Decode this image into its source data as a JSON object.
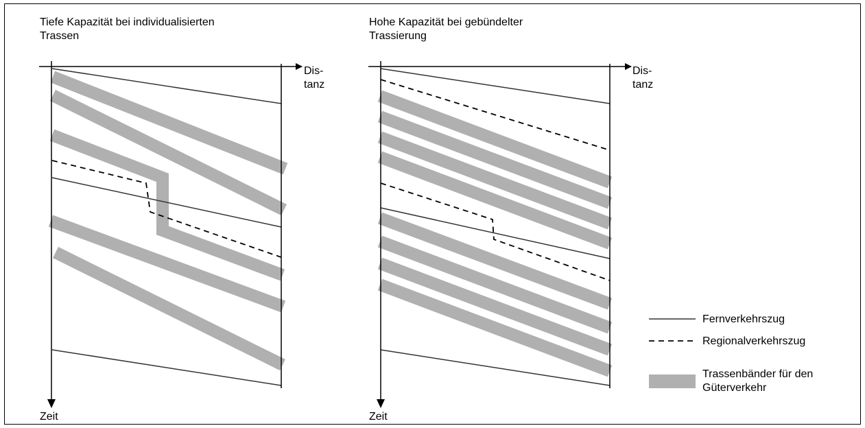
{
  "panels": [
    {
      "title": "Tiefe Kapazität bei individualisierten\nTrassen",
      "x_axis_label": "Dis-\ntanz",
      "y_axis_label": "Zeit"
    },
    {
      "title": "Hohe Kapazität bei gebündelter\nTrassierung",
      "x_axis_label": "Dis-\ntanz",
      "y_axis_label": "Zeit"
    }
  ],
  "legend": {
    "long_distance": "Fernverkehrszug",
    "regional": "Regionalverkehrszug",
    "freight": "Trassenbänder für den\nGüterverkehr"
  },
  "colors": {
    "freight_band": "#b0b0b0",
    "line": "#333333",
    "axis": "#000000"
  }
}
